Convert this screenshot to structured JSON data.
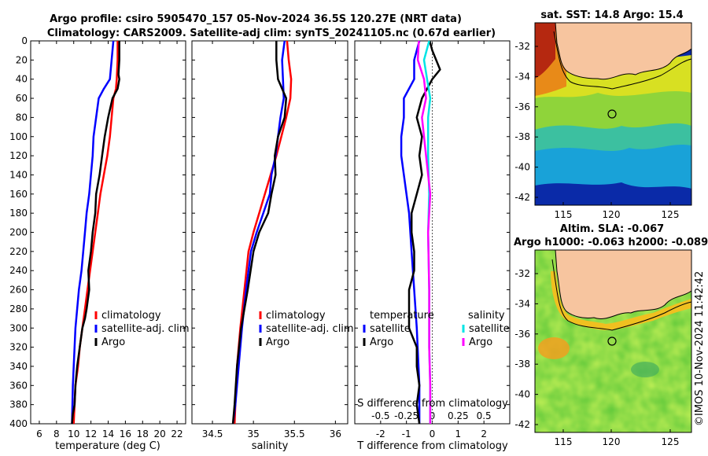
{
  "title": {
    "line1": "Argo profile: csiro 5905470_157 05-Nov-2024 36.5S 120.27E (NRT data)",
    "line2": "Climatology: CARS2009. Satellite-adj clim: synTS_20241105.nc (0.67d earlier)"
  },
  "colors": {
    "climatology": "#ff0000",
    "satellite": "#0000ff",
    "argo": "#000000",
    "sal_satellite": "#00e5e5",
    "sal_argo": "#ff00ff"
  },
  "depth": {
    "ticks": [
      "0",
      "20",
      "40",
      "60",
      "80",
      "100",
      "120",
      "140",
      "160",
      "180",
      "200",
      "220",
      "240",
      "260",
      "280",
      "300",
      "320",
      "340",
      "360",
      "380",
      "400"
    ]
  },
  "chart_data": [
    {
      "type": "line",
      "name": "temperature-profile",
      "xlabel": "temperature (deg C)",
      "ylabel": "",
      "xlim": [
        5,
        23
      ],
      "ylim": [
        0,
        400
      ],
      "y_reversed": true,
      "xticks": [
        "6",
        "8",
        "10",
        "12",
        "14",
        "16",
        "18",
        "20",
        "22"
      ],
      "legend": [
        "climatology",
        "satellite-adj. clim",
        "Argo"
      ],
      "series": [
        {
          "name": "climatology",
          "color": "#ff0000",
          "x": [
            15.1,
            15.1,
            15.0,
            14.9,
            14.6,
            14.4,
            14.2,
            13.9,
            13.5,
            13.1,
            12.8,
            12.5,
            12.2,
            11.9,
            11.6,
            11.3,
            11.0,
            10.7,
            10.5,
            10.2,
            10.0
          ],
          "y": [
            0,
            20,
            40,
            50,
            60,
            80,
            100,
            120,
            140,
            160,
            180,
            200,
            220,
            240,
            260,
            280,
            300,
            320,
            340,
            360,
            400
          ]
        },
        {
          "name": "satellite-adj. clim",
          "color": "#0000ff",
          "x": [
            14.6,
            14.4,
            14.2,
            13.5,
            12.9,
            12.6,
            12.3,
            12.2,
            12.0,
            11.8,
            11.5,
            11.3,
            11.1,
            10.9,
            10.6,
            10.4,
            10.2,
            10.1,
            10.0,
            9.9,
            9.8
          ],
          "y": [
            0,
            20,
            40,
            50,
            60,
            80,
            100,
            120,
            140,
            160,
            180,
            200,
            220,
            240,
            260,
            280,
            300,
            320,
            340,
            360,
            400
          ]
        },
        {
          "name": "Argo",
          "color": "#000000",
          "x": [
            15.3,
            15.3,
            15.2,
            15.3,
            15.1,
            14.5,
            14.0,
            13.6,
            13.3,
            13.0,
            12.6,
            12.5,
            12.2,
            12.0,
            11.7,
            11.8,
            11.5,
            11.3,
            11.0,
            10.7,
            10.4,
            10.2,
            10.1,
            9.9,
            9.8
          ],
          "y": [
            0,
            20,
            35,
            40,
            50,
            60,
            80,
            100,
            120,
            140,
            160,
            180,
            200,
            220,
            240,
            260,
            280,
            290,
            300,
            320,
            340,
            360,
            380,
            390,
            400
          ]
        }
      ]
    },
    {
      "type": "line",
      "name": "salinity-profile",
      "xlabel": "salinity",
      "ylabel": "",
      "xlim": [
        34.25,
        36.15
      ],
      "ylim": [
        0,
        400
      ],
      "y_reversed": true,
      "xticks": [
        "34.5",
        "35",
        "35.5",
        "36"
      ],
      "legend": [
        "climatology",
        "satellite-adj. clim",
        "Argo"
      ],
      "series": [
        {
          "name": "climatology",
          "color": "#ff0000",
          "x": [
            35.41,
            35.43,
            35.46,
            35.45,
            35.4,
            35.34,
            35.28,
            35.21,
            35.14,
            35.07,
            35.0,
            34.94,
            34.89,
            34.84,
            34.8,
            34.78,
            34.77
          ],
          "y": [
            0,
            20,
            40,
            60,
            80,
            100,
            120,
            140,
            160,
            180,
            200,
            220,
            260,
            300,
            340,
            380,
            400
          ]
        },
        {
          "name": "satellite-adj. clim",
          "color": "#0000ff",
          "x": [
            35.38,
            35.35,
            35.36,
            35.37,
            35.33,
            35.3,
            35.27,
            35.22,
            35.2,
            35.12,
            35.04,
            34.97,
            34.91,
            34.86,
            34.82,
            34.78,
            34.75
          ],
          "y": [
            0,
            20,
            40,
            60,
            80,
            100,
            120,
            140,
            160,
            180,
            200,
            220,
            260,
            300,
            340,
            380,
            400
          ]
        },
        {
          "name": "Argo",
          "color": "#000000",
          "x": [
            35.28,
            35.28,
            35.3,
            35.4,
            35.38,
            35.3,
            35.26,
            35.27,
            35.22,
            35.18,
            35.07,
            35.0,
            34.93,
            34.85,
            34.8,
            34.77,
            34.75
          ],
          "y": [
            0,
            20,
            40,
            60,
            80,
            100,
            120,
            140,
            160,
            180,
            200,
            220,
            260,
            300,
            340,
            380,
            400
          ]
        }
      ]
    },
    {
      "type": "line",
      "name": "difference-from-climatology",
      "xlabel": "T difference from climatology",
      "x2label": "S difference from climatology",
      "xlim": [
        -3,
        3
      ],
      "x2lim": [
        -0.75,
        0.75
      ],
      "ylim": [
        0,
        400
      ],
      "y_reversed": true,
      "xticks": [
        "-2",
        "-1",
        "0",
        "1",
        "2"
      ],
      "x2ticks": [
        "-0.5",
        "-0.25",
        "0",
        "0.25",
        "0.5"
      ],
      "legend_temperature_title": "temperature",
      "legend_salinity_title": "salinity",
      "legend_temperature": [
        "satellite",
        "Argo"
      ],
      "legend_salinity": [
        "satellite",
        "Argo"
      ],
      "series": [
        {
          "name": "temperature satellite",
          "color": "#0000ff",
          "axis": "T",
          "x": [
            -0.5,
            -0.7,
            -0.7,
            -1.1,
            -1.1,
            -1.2,
            -1.2,
            -1.1,
            -1.0,
            -0.9,
            -0.8,
            -0.7,
            -0.6,
            -0.5,
            -0.5
          ],
          "y": [
            0,
            20,
            40,
            60,
            80,
            100,
            120,
            140,
            160,
            180,
            220,
            260,
            300,
            360,
            400
          ]
        },
        {
          "name": "temperature Argo",
          "color": "#000000",
          "axis": "T",
          "x": [
            -0.1,
            0.0,
            0.3,
            0.0,
            -0.4,
            -0.6,
            -0.4,
            -0.5,
            -0.4,
            -0.6,
            -0.8,
            -0.8,
            -0.7,
            -0.7,
            -0.9,
            -0.9,
            -0.6,
            -0.6,
            -0.5,
            -0.6,
            -0.5
          ],
          "y": [
            0,
            10,
            30,
            40,
            60,
            80,
            100,
            120,
            140,
            160,
            180,
            200,
            220,
            240,
            260,
            300,
            320,
            340,
            360,
            380,
            400
          ]
        },
        {
          "name": "salinity satellite",
          "color": "#00e5e5",
          "axis": "S",
          "x": [
            -0.03,
            -0.08,
            -0.05,
            -0.02,
            -0.04,
            -0.04,
            -0.03,
            -0.04,
            -0.03,
            -0.03,
            -0.02,
            -0.02
          ],
          "y": [
            0,
            20,
            40,
            60,
            80,
            120,
            160,
            200,
            260,
            320,
            360,
            400
          ]
        },
        {
          "name": "salinity Argo",
          "color": "#ff00ff",
          "axis": "S",
          "x": [
            -0.13,
            -0.14,
            -0.08,
            -0.06,
            -0.1,
            -0.06,
            -0.02,
            -0.04,
            -0.03,
            -0.03,
            -0.02,
            -0.02
          ],
          "y": [
            0,
            20,
            40,
            60,
            80,
            120,
            160,
            200,
            260,
            320,
            360,
            400
          ]
        }
      ]
    }
  ],
  "maps": {
    "sst": {
      "title": "sat. SST: 14.8 Argo: 15.4",
      "yticks": [
        "-32",
        "-34",
        "-36",
        "-38",
        "-40",
        "-42"
      ],
      "xticks": [
        "115",
        "120",
        "125"
      ],
      "lon": 120.27,
      "lat": -36.5
    },
    "sla": {
      "title1": "Altim. SLA: -0.067",
      "title2": "Argo h1000: -0.063 h2000: -0.089",
      "yticks": [
        "-32",
        "-34",
        "-36",
        "-38",
        "-40",
        "-42"
      ],
      "xticks": [
        "115",
        "120",
        "125"
      ],
      "lon": 120.27,
      "lat": -36.5
    }
  },
  "credit": "©IMOS 10-Nov-2024 11:42:42"
}
